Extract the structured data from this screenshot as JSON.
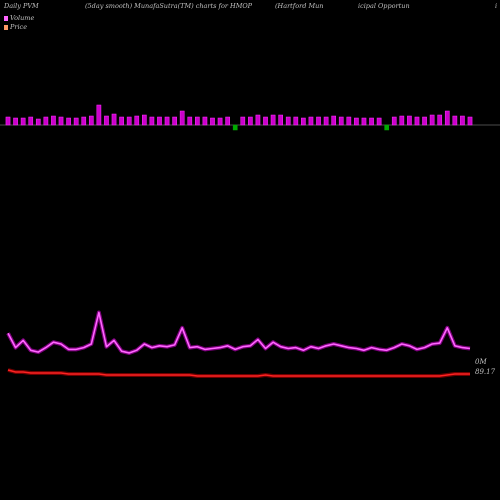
{
  "header": {
    "left": "Daily PVM",
    "smooth": "(5day smooth) MunafaSutra(TM) charts for HMOP",
    "name_part1": "(Hartford Mun",
    "name_part2": "icipal Opportun",
    "name_part3": "i"
  },
  "legend": {
    "volume": "Volume",
    "price": "Price",
    "volume_color": "#ff66ff",
    "price_color": "#ff3333"
  },
  "labels": {
    "volume_end": "0M",
    "price_end": "89.17"
  },
  "colors": {
    "bar_fill": "#cc00cc",
    "bar_edge": "#ff33ff",
    "neg_bar": "#00aa00",
    "volume_line": "#ff66ff",
    "volume_glow": "#990099",
    "price_line": "#ff2222",
    "axis_line": "#999999"
  },
  "chart_data": {
    "type": "line",
    "series": [
      {
        "name": "Volume",
        "values": [
          52,
          36,
          44,
          33,
          31,
          36,
          42,
          40,
          34,
          34,
          36,
          40,
          75,
          37,
          44,
          32,
          30,
          33,
          40,
          36,
          38,
          37,
          39,
          58,
          36,
          37,
          34,
          35,
          36,
          38,
          34,
          37,
          38,
          45,
          35,
          42,
          37,
          35,
          36,
          33,
          37,
          35,
          38,
          40,
          38,
          36,
          35,
          33,
          36,
          34,
          33,
          36,
          40,
          38,
          34,
          36,
          40,
          41,
          58,
          38,
          36,
          35
        ]
      },
      {
        "name": "Price",
        "values": [
          30,
          28,
          28,
          27,
          27,
          27,
          27,
          27,
          26,
          26,
          26,
          26,
          26,
          25,
          25,
          25,
          25,
          25,
          25,
          25,
          25,
          25,
          25,
          25,
          25,
          24,
          24,
          24,
          24,
          24,
          24,
          24,
          24,
          24,
          25,
          24,
          24,
          24,
          24,
          24,
          24,
          24,
          24,
          24,
          24,
          24,
          24,
          24,
          24,
          24,
          24,
          24,
          24,
          24,
          24,
          24,
          24,
          24,
          25,
          26,
          26,
          26
        ]
      },
      {
        "name": "bars",
        "values": [
          8,
          7,
          7,
          8,
          6,
          8,
          9,
          8,
          7,
          7,
          8,
          9,
          20,
          9,
          11,
          8,
          8,
          9,
          10,
          8,
          8,
          8,
          8,
          14,
          8,
          8,
          8,
          7,
          7,
          8,
          -5,
          8,
          8,
          10,
          8,
          10,
          10,
          8,
          8,
          7,
          8,
          8,
          8,
          9,
          8,
          8,
          7,
          7,
          7,
          7,
          -5,
          8,
          9,
          9,
          8,
          8,
          10,
          10,
          14,
          9,
          9,
          8
        ]
      }
    ]
  }
}
